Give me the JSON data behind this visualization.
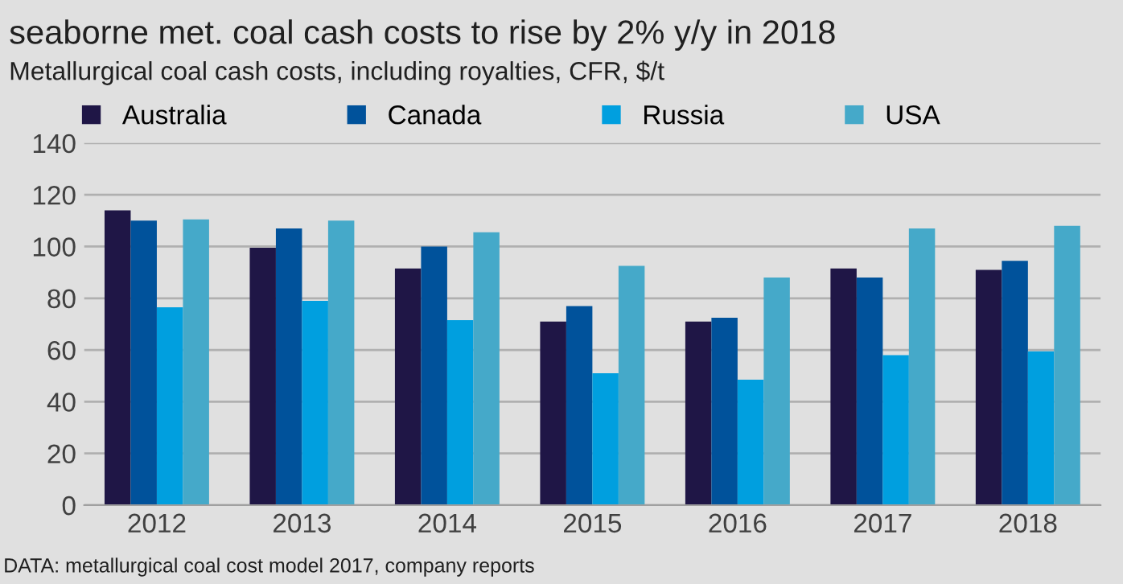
{
  "chart_data": {
    "type": "bar",
    "title": "seaborne met. coal cash costs to rise by 2% y/y in 2018",
    "subtitle": "Metallurgical coal cash costs, including royalties, CFR, $/t",
    "categories": [
      "2012",
      "2013",
      "2014",
      "2015",
      "2016",
      "2017",
      "2018"
    ],
    "series": [
      {
        "name": "Australia",
        "color": "#1f1646",
        "values": [
          114,
          99.5,
          91.5,
          71,
          71,
          91.5,
          91
        ]
      },
      {
        "name": "Canada",
        "color": "#00529b",
        "values": [
          110,
          107,
          100,
          77,
          72.5,
          88,
          94.5
        ]
      },
      {
        "name": "Russia",
        "color": "#009fdf",
        "values": [
          76.5,
          79,
          71.5,
          51,
          48.5,
          58,
          59.5
        ]
      },
      {
        "name": "USA",
        "color": "#45a9c9",
        "values": [
          110.5,
          110,
          105.5,
          92.5,
          88,
          107,
          108
        ]
      }
    ],
    "ylim": [
      0,
      140
    ],
    "yticks": [
      0,
      20,
      40,
      60,
      80,
      100,
      120,
      140
    ],
    "grid": "y",
    "legend": "top",
    "annotations": [
      "DATA: metallurgical coal cost model 2017, company reports"
    ]
  }
}
